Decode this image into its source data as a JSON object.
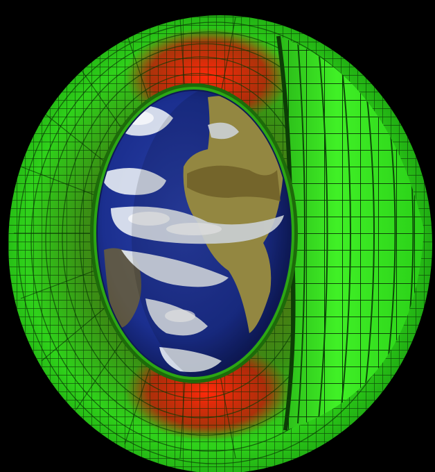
{
  "figure": {
    "subject": "earth-with-lattice-shell",
    "colors": {
      "background": "#000000",
      "shell_green": "#2fd21a",
      "shell_green_bright": "#45ff2a",
      "shell_green_dark": "#0f5a08",
      "shell_red": "#e0200a",
      "shell_brown": "#6a4a10",
      "grid_line": "#062b04",
      "ocean": "#1b2f8f",
      "ocean_deep": "#101e6a",
      "cloud": "#e8eef4",
      "land": "#a89a4a",
      "land_dark": "#7a6a2a"
    }
  }
}
